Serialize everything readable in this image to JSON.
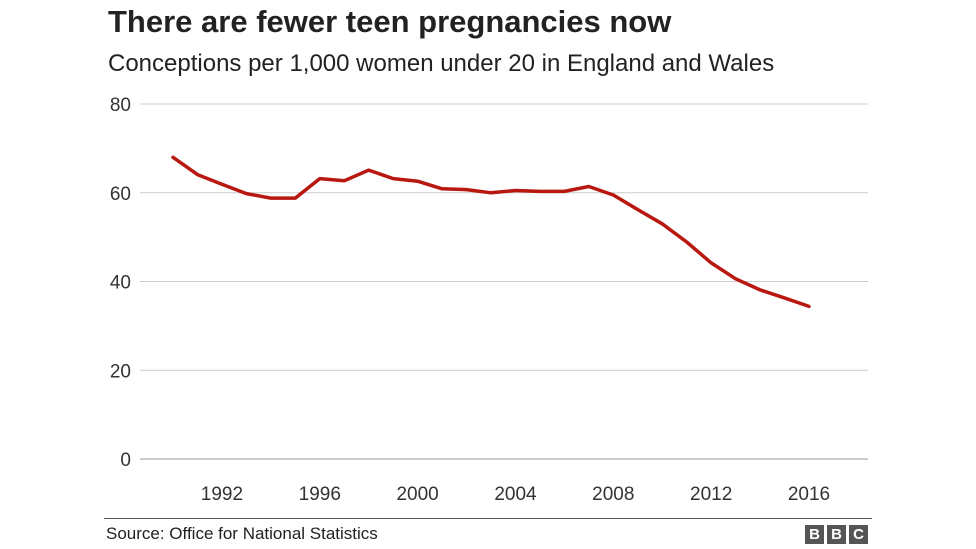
{
  "chart_data": {
    "type": "line",
    "title": "There are fewer teen pregnancies now",
    "subtitle": "Conceptions per 1,000 women under 20 in England and Wales",
    "xlabel": "",
    "ylabel": "",
    "ylim": [
      0,
      80
    ],
    "xlim": [
      1989,
      2017
    ],
    "yticks": [
      0,
      20,
      40,
      60,
      80
    ],
    "xticks": [
      1992,
      1996,
      2000,
      2004,
      2008,
      2012,
      2016
    ],
    "grid": true,
    "series": [
      {
        "color": "#b8180f",
        "x": [
          1990,
          1991,
          1992,
          1993,
          1994,
          1995,
          1996,
          1997,
          1998,
          1999,
          2000,
          2001,
          2002,
          2003,
          2004,
          2005,
          2006,
          2007,
          2008,
          2009,
          2010,
          2011,
          2012,
          2013,
          2014,
          2015,
          2016
        ],
        "y": [
          68.0,
          64.1,
          61.9,
          59.8,
          58.8,
          58.8,
          63.2,
          62.7,
          65.1,
          63.2,
          62.6,
          60.9,
          60.7,
          60.0,
          60.5,
          60.3,
          60.3,
          61.4,
          59.5,
          56.2,
          53.0,
          48.9,
          44.2,
          40.6,
          38.1,
          36.3,
          34.4
        ]
      }
    ]
  },
  "source": "Source: Office for National Statistics",
  "logo": [
    "B",
    "B",
    "C"
  ],
  "colors": {
    "line": "#b8180f",
    "grid": "#cccccc",
    "axis": "#333333"
  }
}
